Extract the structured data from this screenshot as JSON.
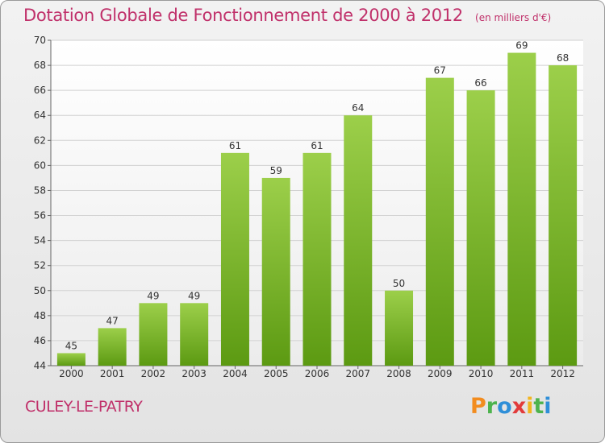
{
  "header": {
    "title": "Dotation Globale de Fonctionnement de 2000 à 2012",
    "subtitle": "(en milliers d'€)"
  },
  "footer": {
    "location": "CULEY-LE-PATRY",
    "brand": "Proxiti"
  },
  "colors": {
    "title": "#c0306a",
    "bar_light": "#9ccf4a",
    "bar_dark": "#5c9a12"
  },
  "chart_data": {
    "type": "bar",
    "categories": [
      "2000",
      "2001",
      "2002",
      "2003",
      "2004",
      "2005",
      "2006",
      "2007",
      "2008",
      "2009",
      "2010",
      "2011",
      "2012"
    ],
    "values": [
      45,
      47,
      49,
      49,
      61,
      59,
      61,
      64,
      50,
      67,
      66,
      69,
      68
    ],
    "ylim": [
      44,
      70
    ],
    "yticks": [
      44,
      46,
      48,
      50,
      52,
      54,
      56,
      58,
      60,
      62,
      64,
      66,
      68,
      70
    ],
    "grid": true,
    "data_labels": true
  }
}
